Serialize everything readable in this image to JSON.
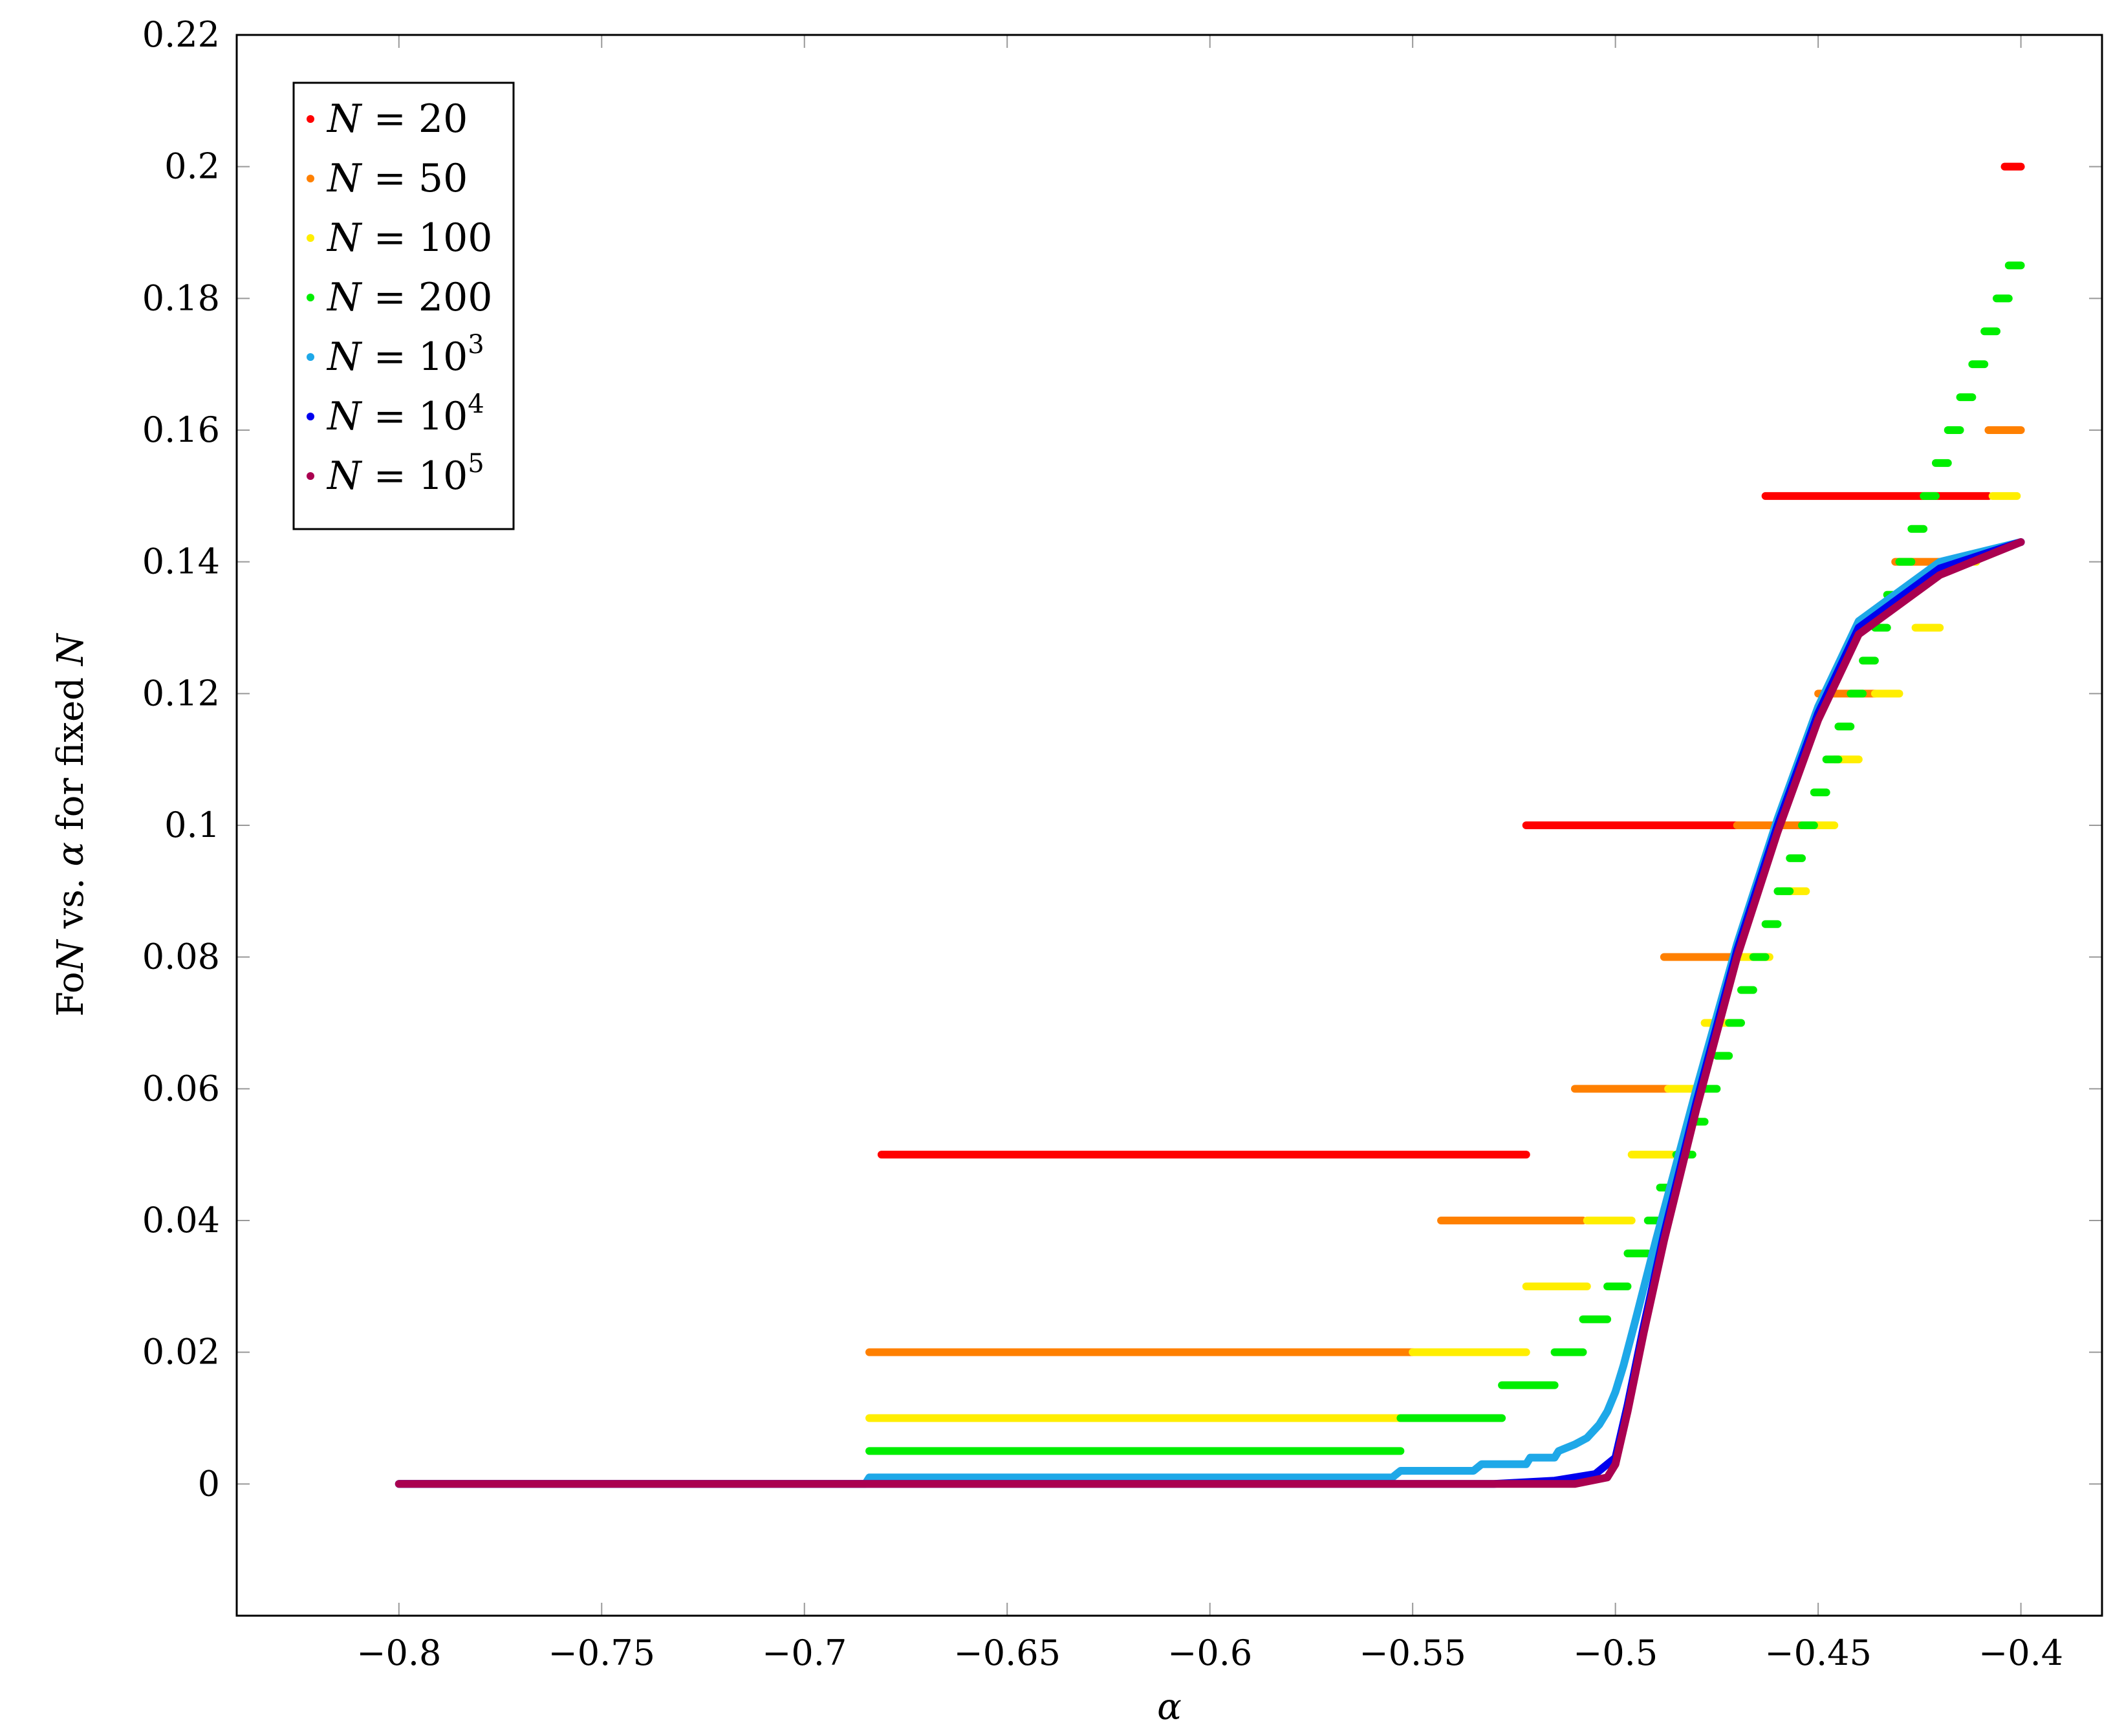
{
  "chart_data": {
    "type": "scatter",
    "title": "",
    "xlabel": "α",
    "ylabel": "FoN vs. α for fixed N",
    "xlim": [
      -0.84,
      -0.38
    ],
    "ylim": [
      -0.02,
      0.22
    ],
    "xticks": [
      -0.8,
      -0.75,
      -0.7,
      -0.65,
      -0.6,
      -0.55,
      -0.5,
      -0.45,
      -0.4
    ],
    "xtick_labels": [
      "−0.8",
      "−0.75",
      "−0.7",
      "−0.65",
      "−0.6",
      "−0.55",
      "−0.5",
      "−0.45",
      "−0.4"
    ],
    "yticks": [
      0,
      0.02,
      0.04,
      0.06,
      0.08,
      0.1,
      0.12,
      0.14,
      0.16,
      0.18,
      0.2,
      0.22
    ],
    "ytick_labels": [
      "0",
      "0.02",
      "0.04",
      "0.06",
      "0.08",
      "0.1",
      "0.12",
      "0.14",
      "0.16",
      "0.18",
      "0.2",
      "0.22"
    ],
    "grid": "ticks",
    "legend_position": "top-left",
    "series": [
      {
        "name": "N = 20",
        "legend": {
          "var": "N",
          "op": " = ",
          "num": "20",
          "exp": ""
        },
        "color": "#ff0000",
        "segments": [
          [
            -0.681,
            -0.522,
            0.05
          ],
          [
            -0.522,
            -0.47,
            0.1
          ],
          [
            -0.463,
            -0.408,
            0.15
          ],
          [
            -0.404,
            -0.4,
            0.2
          ]
        ]
      },
      {
        "name": "N = 50",
        "legend": {
          "var": "N",
          "op": " = ",
          "num": "50",
          "exp": ""
        },
        "color": "#ff8000",
        "segments": [
          [
            -0.684,
            -0.55,
            0.02
          ],
          [
            -0.543,
            -0.508,
            0.04
          ],
          [
            -0.51,
            -0.487,
            0.06
          ],
          [
            -0.47,
            -0.453,
            0.1
          ],
          [
            -0.488,
            -0.47,
            0.08
          ],
          [
            -0.45,
            -0.436,
            0.12
          ],
          [
            -0.431,
            -0.417,
            0.14
          ],
          [
            -0.408,
            -0.4,
            0.16
          ]
        ]
      },
      {
        "name": "N = 100",
        "legend": {
          "var": "N",
          "op": " = ",
          "num": "100",
          "exp": ""
        },
        "color": "#ffee00",
        "segments": [
          [
            -0.684,
            -0.553,
            0.01
          ],
          [
            -0.55,
            -0.522,
            0.02
          ],
          [
            -0.522,
            -0.507,
            0.03
          ],
          [
            -0.507,
            -0.496,
            0.04
          ],
          [
            -0.496,
            -0.486,
            0.05
          ],
          [
            -0.487,
            -0.478,
            0.06
          ],
          [
            -0.478,
            -0.471,
            0.07
          ],
          [
            -0.47,
            -0.462,
            0.08
          ],
          [
            -0.459,
            -0.453,
            0.09
          ],
          [
            -0.453,
            -0.446,
            0.1
          ],
          [
            -0.446,
            -0.44,
            0.11
          ],
          [
            -0.436,
            -0.43,
            0.12
          ],
          [
            -0.426,
            -0.42,
            0.13
          ],
          [
            -0.417,
            -0.411,
            0.14
          ],
          [
            -0.407,
            -0.401,
            0.15
          ]
        ]
      },
      {
        "name": "N = 200",
        "legend": {
          "var": "N",
          "op": " = ",
          "num": "200",
          "exp": ""
        },
        "color": "#00ee00",
        "segments": [
          [
            -0.684,
            -0.553,
            0.005
          ],
          [
            -0.553,
            -0.528,
            0.01
          ],
          [
            -0.528,
            -0.515,
            0.015
          ],
          [
            -0.515,
            -0.508,
            0.02
          ],
          [
            -0.508,
            -0.502,
            0.025
          ],
          [
            -0.502,
            -0.497,
            0.03
          ],
          [
            -0.497,
            -0.492,
            0.035
          ],
          [
            -0.492,
            -0.489,
            0.04
          ],
          [
            -0.489,
            -0.485,
            0.045
          ],
          [
            -0.485,
            -0.481,
            0.05
          ],
          [
            -0.481,
            -0.478,
            0.055
          ],
          [
            -0.478,
            -0.475,
            0.06
          ],
          [
            -0.475,
            -0.472,
            0.065
          ],
          [
            -0.472,
            -0.469,
            0.07
          ],
          [
            -0.469,
            -0.466,
            0.075
          ],
          [
            -0.466,
            -0.463,
            0.08
          ],
          [
            -0.463,
            -0.46,
            0.085
          ],
          [
            -0.46,
            -0.457,
            0.09
          ],
          [
            -0.457,
            -0.454,
            0.095
          ],
          [
            -0.454,
            -0.451,
            0.1
          ],
          [
            -0.451,
            -0.448,
            0.105
          ],
          [
            -0.448,
            -0.445,
            0.11
          ],
          [
            -0.445,
            -0.442,
            0.115
          ],
          [
            -0.442,
            -0.439,
            0.12
          ],
          [
            -0.439,
            -0.436,
            0.125
          ],
          [
            -0.436,
            -0.433,
            0.13
          ],
          [
            -0.433,
            -0.43,
            0.135
          ],
          [
            -0.43,
            -0.427,
            0.14
          ],
          [
            -0.427,
            -0.424,
            0.145
          ],
          [
            -0.424,
            -0.421,
            0.15
          ],
          [
            -0.421,
            -0.418,
            0.155
          ],
          [
            -0.418,
            -0.415,
            0.16
          ],
          [
            -0.415,
            -0.412,
            0.165
          ],
          [
            -0.412,
            -0.409,
            0.17
          ],
          [
            -0.409,
            -0.406,
            0.175
          ],
          [
            -0.406,
            -0.403,
            0.18
          ],
          [
            -0.403,
            -0.4,
            0.185
          ]
        ]
      },
      {
        "name": "N = 10^3",
        "legend": {
          "var": "N",
          "op": " = ",
          "num": "10",
          "exp": "3"
        },
        "color": "#1ea8e8",
        "curve": [
          [
            -0.8,
            0.0
          ],
          [
            -0.685,
            0.0
          ],
          [
            -0.684,
            0.001
          ],
          [
            -0.555,
            0.001
          ],
          [
            -0.553,
            0.002
          ],
          [
            -0.535,
            0.002
          ],
          [
            -0.533,
            0.003
          ],
          [
            -0.522,
            0.003
          ],
          [
            -0.521,
            0.004
          ],
          [
            -0.515,
            0.004
          ],
          [
            -0.514,
            0.005
          ],
          [
            -0.51,
            0.006
          ],
          [
            -0.507,
            0.007
          ],
          [
            -0.504,
            0.009
          ],
          [
            -0.502,
            0.011
          ],
          [
            -0.5,
            0.014
          ],
          [
            -0.498,
            0.018
          ],
          [
            -0.495,
            0.025
          ],
          [
            -0.49,
            0.037
          ],
          [
            -0.48,
            0.06
          ],
          [
            -0.47,
            0.082
          ],
          [
            -0.46,
            0.101
          ],
          [
            -0.45,
            0.118
          ],
          [
            -0.44,
            0.131
          ],
          [
            -0.42,
            0.14
          ],
          [
            -0.4,
            0.143
          ]
        ]
      },
      {
        "name": "N = 10^4",
        "legend": {
          "var": "N",
          "op": " = ",
          "num": "10",
          "exp": "4"
        },
        "color": "#0000ee",
        "curve": [
          [
            -0.8,
            0.0
          ],
          [
            -0.53,
            0.0
          ],
          [
            -0.515,
            0.0005
          ],
          [
            -0.505,
            0.0015
          ],
          [
            -0.5,
            0.004
          ],
          [
            -0.497,
            0.012
          ],
          [
            -0.493,
            0.024
          ],
          [
            -0.488,
            0.038
          ],
          [
            -0.48,
            0.058
          ],
          [
            -0.47,
            0.081
          ],
          [
            -0.46,
            0.1
          ],
          [
            -0.45,
            0.117
          ],
          [
            -0.44,
            0.13
          ],
          [
            -0.42,
            0.139
          ],
          [
            -0.4,
            0.143
          ]
        ]
      },
      {
        "name": "N = 10^5",
        "legend": {
          "var": "N",
          "op": " = ",
          "num": "10",
          "exp": "5"
        },
        "color": "#aa0050",
        "curve": [
          [
            -0.8,
            0.0
          ],
          [
            -0.51,
            0.0
          ],
          [
            -0.502,
            0.001
          ],
          [
            -0.5,
            0.003
          ],
          [
            -0.497,
            0.011
          ],
          [
            -0.493,
            0.023
          ],
          [
            -0.488,
            0.037
          ],
          [
            -0.48,
            0.057
          ],
          [
            -0.47,
            0.08
          ],
          [
            -0.46,
            0.099
          ],
          [
            -0.45,
            0.116
          ],
          [
            -0.44,
            0.129
          ],
          [
            -0.42,
            0.138
          ],
          [
            -0.4,
            0.143
          ]
        ]
      }
    ]
  }
}
